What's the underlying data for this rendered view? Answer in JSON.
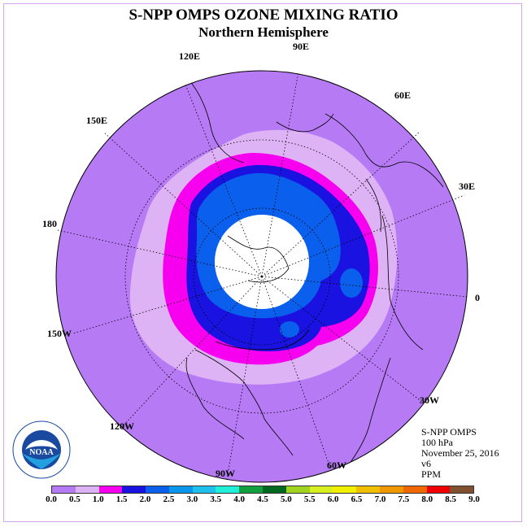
{
  "title": "S-NPP OMPS OZONE MIXING RATIO",
  "subtitle": "Northern Hemisphere",
  "longitude_labels": {
    "lon_90e": "90E",
    "lon_60e": "60E",
    "lon_30e": "30E",
    "lon_0": "0",
    "lon_30w": "30W",
    "lon_60w": "60W",
    "lon_90w": "90W",
    "lon_120w": "120W",
    "lon_150w": "150W",
    "lon_180": "180",
    "lon_150e": "150E",
    "lon_120e": "120E"
  },
  "info": {
    "instrument": "S-NPP OMPS",
    "level": "100 hPa",
    "date": "November 25, 2016",
    "version": "v6",
    "units": "PPM"
  },
  "logo": {
    "text": "NOAA",
    "icon": "noaa-logo-icon"
  },
  "colorbar": {
    "ticks": [
      "0.0",
      "0.5",
      "1.0",
      "1.5",
      "2.0",
      "2.5",
      "3.0",
      "3.5",
      "4.0",
      "4.5",
      "5.0",
      "5.5",
      "6.0",
      "6.5",
      "7.0",
      "7.5",
      "8.0",
      "8.5",
      "9.0"
    ],
    "colors": [
      "#b77af5",
      "#deb3f5",
      "#f700f0",
      "#1a12e0",
      "#0a60ec",
      "#0a96ec",
      "#20c0ec",
      "#20f0d8",
      "#10a040",
      "#006820",
      "#a0d420",
      "#d8f020",
      "#f0f000",
      "#f0c000",
      "#f09800",
      "#f06800",
      "#f00000",
      "#805030"
    ]
  },
  "map_colors": {
    "background": "#b77af5",
    "band_0_5_1_0": "#deb3f5",
    "band_1_0_1_5": "#f700f0",
    "band_1_5_2_0": "#1a12e0",
    "band_2_0_2_5": "#0a60ec",
    "no_data": "#ffffff"
  }
}
